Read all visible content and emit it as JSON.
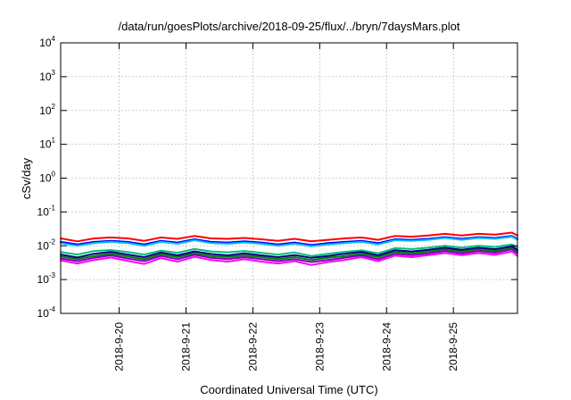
{
  "chart_data": {
    "type": "line",
    "title": "/data/run/goesPlots/archive/2018-09-25/flux/../bryn/7daysMars.plot",
    "xlabel": "Coordinated Universal Time (UTC)",
    "ylabel": "cSv/day",
    "xlim": [
      "2018-09-19T03:00",
      "2018-09-25T23:00"
    ],
    "ylim": [
      0.0001,
      10000
    ],
    "yscale": "log",
    "grid": true,
    "legend": "none",
    "x_ticks": [
      "2018-9-20",
      "2018-9-21",
      "2018-9-22",
      "2018-9-23",
      "2018-9-24",
      "2018-9-25"
    ],
    "y_ticks": [
      {
        "base": "10",
        "exp": "-4"
      },
      {
        "base": "10",
        "exp": "-3"
      },
      {
        "base": "10",
        "exp": "-2"
      },
      {
        "base": "10",
        "exp": "-1"
      },
      {
        "base": "10",
        "exp": "0"
      },
      {
        "base": "10",
        "exp": "1"
      },
      {
        "base": "10",
        "exp": "2"
      },
      {
        "base": "10",
        "exp": "3"
      },
      {
        "base": "10",
        "exp": "4"
      }
    ],
    "x": [
      "2018-09-19T03:00",
      "2018-09-19T09:00",
      "2018-09-19T15:00",
      "2018-09-19T21:00",
      "2018-09-20T03:00",
      "2018-09-20T09:00",
      "2018-09-20T15:00",
      "2018-09-20T21:00",
      "2018-09-21T03:00",
      "2018-09-21T09:00",
      "2018-09-21T15:00",
      "2018-09-21T21:00",
      "2018-09-22T03:00",
      "2018-09-22T09:00",
      "2018-09-22T15:00",
      "2018-09-22T21:00",
      "2018-09-23T03:00",
      "2018-09-23T09:00",
      "2018-09-23T15:00",
      "2018-09-23T21:00",
      "2018-09-24T03:00",
      "2018-09-24T09:00",
      "2018-09-24T15:00",
      "2018-09-24T21:00",
      "2018-09-25T03:00",
      "2018-09-25T09:00",
      "2018-09-25T15:00",
      "2018-09-25T21:00",
      "2018-09-25T23:00"
    ],
    "series": [
      {
        "color": "#ff0000",
        "values": [
          0.0165,
          0.0135,
          0.0165,
          0.0175,
          0.0165,
          0.014,
          0.0175,
          0.016,
          0.0195,
          0.0165,
          0.016,
          0.017,
          0.0155,
          0.014,
          0.016,
          0.0135,
          0.015,
          0.0165,
          0.0175,
          0.015,
          0.0195,
          0.0185,
          0.02,
          0.0225,
          0.02,
          0.0225,
          0.0215,
          0.0245,
          0.02
        ]
      },
      {
        "color": "#0000ff",
        "values": [
          0.013,
          0.011,
          0.013,
          0.014,
          0.013,
          0.011,
          0.014,
          0.0125,
          0.0155,
          0.013,
          0.0125,
          0.0135,
          0.0125,
          0.011,
          0.0125,
          0.0105,
          0.012,
          0.013,
          0.014,
          0.012,
          0.0155,
          0.015,
          0.016,
          0.018,
          0.016,
          0.018,
          0.017,
          0.0195,
          0.016
        ]
      },
      {
        "color": "#00bfff",
        "values": [
          0.012,
          0.01,
          0.012,
          0.013,
          0.012,
          0.01,
          0.013,
          0.0115,
          0.0145,
          0.012,
          0.0115,
          0.0125,
          0.0115,
          0.01,
          0.0115,
          0.0097,
          0.011,
          0.012,
          0.013,
          0.011,
          0.0145,
          0.014,
          0.015,
          0.017,
          0.015,
          0.017,
          0.016,
          0.0185,
          0.015
        ]
      },
      {
        "color": "#00c080",
        "values": [
          0.0065,
          0.0055,
          0.007,
          0.0075,
          0.0065,
          0.0055,
          0.0072,
          0.0062,
          0.008,
          0.0068,
          0.0064,
          0.007,
          0.0062,
          0.0055,
          0.0063,
          0.005,
          0.0058,
          0.0066,
          0.0073,
          0.006,
          0.0085,
          0.008,
          0.0088,
          0.01,
          0.0088,
          0.01,
          0.0092,
          0.011,
          0.009
        ]
      },
      {
        "color": "#008000",
        "values": [
          0.0048,
          0.004,
          0.005,
          0.0058,
          0.0048,
          0.004,
          0.0056,
          0.0046,
          0.006,
          0.005,
          0.0046,
          0.0052,
          0.0046,
          0.004,
          0.0046,
          0.0038,
          0.0044,
          0.005,
          0.0058,
          0.0046,
          0.0066,
          0.006,
          0.0068,
          0.0078,
          0.0068,
          0.0078,
          0.007,
          0.0086,
          0.0068
        ]
      },
      {
        "color": "#000080",
        "values": [
          0.0055,
          0.0045,
          0.0058,
          0.0066,
          0.0055,
          0.0046,
          0.0063,
          0.0052,
          0.0068,
          0.0057,
          0.0052,
          0.006,
          0.0052,
          0.0046,
          0.0053,
          0.0044,
          0.005,
          0.0058,
          0.0066,
          0.0052,
          0.0074,
          0.0068,
          0.0076,
          0.0088,
          0.0076,
          0.0088,
          0.0079,
          0.0096,
          0.0076
        ]
      },
      {
        "color": "#8000c0",
        "values": [
          0.0042,
          0.0035,
          0.0044,
          0.0052,
          0.0042,
          0.0035,
          0.005,
          0.004,
          0.0054,
          0.0044,
          0.004,
          0.0046,
          0.004,
          0.0035,
          0.004,
          0.0033,
          0.0038,
          0.0044,
          0.0052,
          0.004,
          0.0058,
          0.0053,
          0.006,
          0.007,
          0.006,
          0.007,
          0.0062,
          0.0078,
          0.006
        ]
      },
      {
        "color": "#ff00ff",
        "values": [
          0.0037,
          0.003,
          0.0038,
          0.0045,
          0.0036,
          0.0029,
          0.0043,
          0.0034,
          0.0047,
          0.0038,
          0.0034,
          0.004,
          0.0034,
          0.003,
          0.0035,
          0.0027,
          0.0033,
          0.0038,
          0.0046,
          0.0035,
          0.0051,
          0.0046,
          0.0053,
          0.0061,
          0.0053,
          0.0061,
          0.0054,
          0.0068,
          0.005
        ]
      }
    ]
  }
}
